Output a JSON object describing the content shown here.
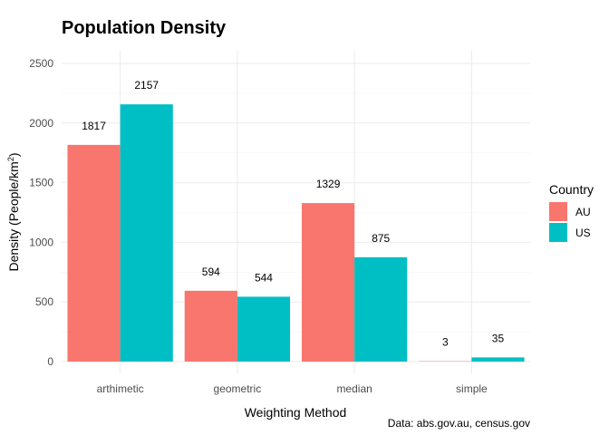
{
  "chart_data": {
    "type": "bar",
    "title": "Population Density",
    "xlabel": "Weighting Method",
    "ylabel_main": "Density (People/km",
    "ylabel_sup": "2",
    "ylabel_close": ")",
    "caption": "Data: abs.gov.au, census.gov",
    "categories": [
      "arthimetic",
      "geometric",
      "median",
      "simple"
    ],
    "series": [
      {
        "name": "AU",
        "color": "#F8766D",
        "values": [
          1817,
          594,
          1329,
          3
        ]
      },
      {
        "name": "US",
        "color": "#00BFC4",
        "values": [
          2157,
          544,
          875,
          35
        ]
      }
    ],
    "ylim": [
      0,
      2500
    ],
    "yticks": [
      0,
      500,
      1000,
      1500,
      2000,
      2500
    ],
    "grid": true,
    "legend": {
      "title": "Country",
      "placement": "right"
    }
  }
}
